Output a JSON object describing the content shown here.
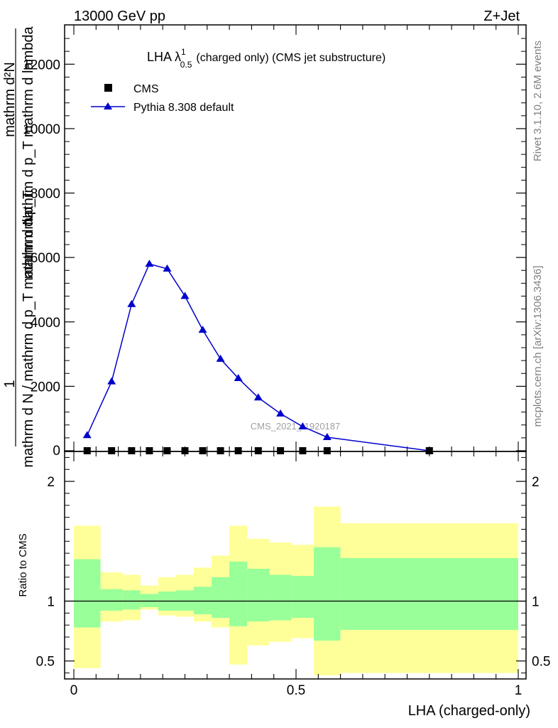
{
  "header": {
    "left": "13000 GeV pp",
    "right": "Z+Jet"
  },
  "side_labels": {
    "rivet": "Rivet 3.1.10,  2.6M events",
    "mcplots": "mcplots.cern.ch [arXiv:1306.3436]"
  },
  "chart_data": [
    {
      "type": "line",
      "title": "LHA λ¹₀.₅ (charged only) (CMS jet substructure)",
      "title_main": "LHA λ",
      "title_sup": "1",
      "title_sub": "0.5",
      "title_rest": "(charged only) (CMS jet substructure)",
      "ylabel_fraction_numerator": "1",
      "ylabel_main": "mathrm d N / mathrm d p",
      "ylabel_tail": "mathrm d p_T mathrm d lambda",
      "ylabel_lines": [
        "mathrm d²N",
        "mathrm d p_T mathrm d lambda",
        "mathrm d p_T",
        "mathrm d N / mathrm d p_T mathrm d N"
      ],
      "xlim": [
        0,
        1
      ],
      "ylim": [
        0,
        13000
      ],
      "yticks": [
        0,
        2000,
        4000,
        6000,
        8000,
        10000,
        12000
      ],
      "ytick_labels": [
        "0",
        "2000",
        "4000",
        "6000",
        "8000",
        "10000",
        "12000"
      ],
      "watermark": "CMS_2021_I1920187",
      "legend": [
        {
          "label": "CMS",
          "marker": "square",
          "color": "#000000"
        },
        {
          "label": "Pythia 8.308 default",
          "marker": "triangle",
          "color": "#0000cc"
        }
      ],
      "series": [
        {
          "name": "CMS",
          "x": [
            0.03,
            0.085,
            0.13,
            0.17,
            0.21,
            0.25,
            0.29,
            0.33,
            0.37,
            0.415,
            0.465,
            0.515,
            0.57,
            0.8
          ],
          "y": [
            0,
            0,
            0,
            0,
            0,
            0,
            0,
            0,
            0,
            0,
            0,
            0,
            0,
            0
          ]
        },
        {
          "name": "Pythia 8.308 default",
          "x": [
            0.03,
            0.085,
            0.13,
            0.17,
            0.21,
            0.25,
            0.29,
            0.33,
            0.37,
            0.415,
            0.465,
            0.515,
            0.57,
            0.8
          ],
          "y": [
            480,
            2150,
            4550,
            5800,
            5650,
            4800,
            3750,
            2850,
            2250,
            1650,
            1150,
            750,
            420,
            0
          ]
        }
      ]
    },
    {
      "type": "area",
      "ylabel": "Ratio to CMS",
      "xlabel": "LHA (charged-only)",
      "xlim": [
        0,
        1
      ],
      "ylim": [
        0.35,
        2.25
      ],
      "xticks": [
        0,
        0.5,
        1
      ],
      "xtick_labels": [
        "0",
        "0.5",
        "1"
      ],
      "yticks": [
        0.5,
        1,
        2
      ],
      "ytick_labels": [
        "0.5",
        "1",
        "2"
      ],
      "reference_line": 1,
      "band_colors": {
        "inner": "#99ff99",
        "outer": "#ffff99"
      },
      "bins": [
        0,
        0.06,
        0.11,
        0.15,
        0.19,
        0.23,
        0.27,
        0.31,
        0.35,
        0.39,
        0.44,
        0.49,
        0.54,
        0.6,
        1.0
      ],
      "inner_band": [
        [
          0.78,
          1.35
        ],
        [
          0.92,
          1.1
        ],
        [
          0.93,
          1.09
        ],
        [
          0.95,
          1.06
        ],
        [
          0.92,
          1.08
        ],
        [
          0.92,
          1.09
        ],
        [
          0.89,
          1.12
        ],
        [
          0.86,
          1.2
        ],
        [
          0.79,
          1.33
        ],
        [
          0.83,
          1.27
        ],
        [
          0.84,
          1.22
        ],
        [
          0.86,
          1.21
        ],
        [
          0.67,
          1.45
        ],
        [
          0.76,
          1.36
        ]
      ],
      "outer_band": [
        [
          0.44,
          1.63
        ],
        [
          0.83,
          1.24
        ],
        [
          0.84,
          1.22
        ],
        [
          0.93,
          1.13
        ],
        [
          0.88,
          1.2
        ],
        [
          0.87,
          1.22
        ],
        [
          0.83,
          1.28
        ],
        [
          0.78,
          1.38
        ],
        [
          0.47,
          1.63
        ],
        [
          0.63,
          1.52
        ],
        [
          0.66,
          1.49
        ],
        [
          0.69,
          1.47
        ],
        [
          0.38,
          1.79
        ],
        [
          0.4,
          1.65
        ]
      ]
    }
  ]
}
